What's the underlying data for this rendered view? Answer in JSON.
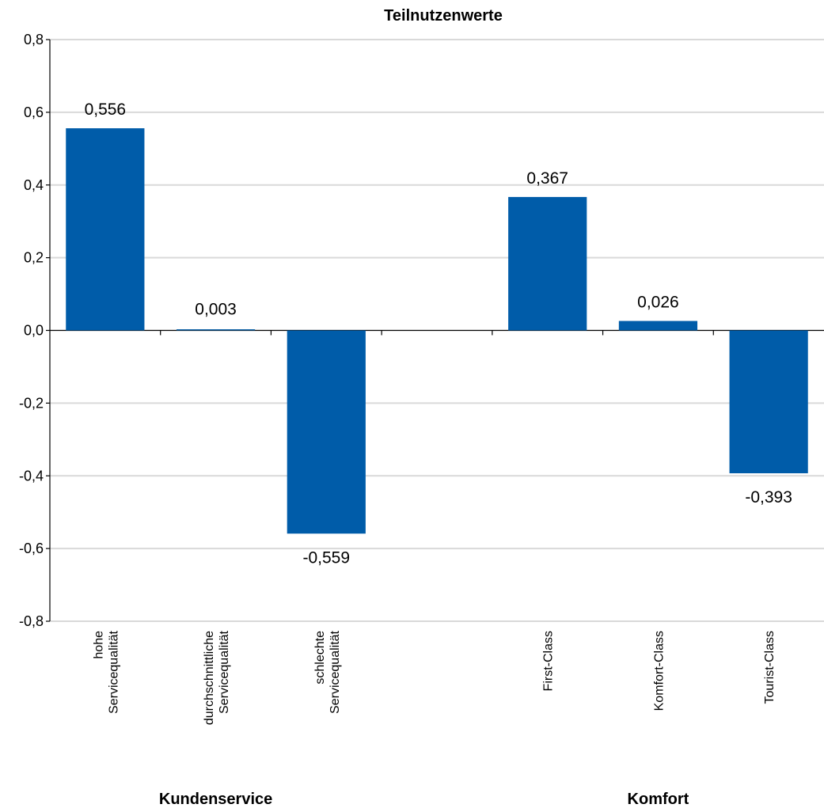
{
  "chart_data": {
    "type": "bar",
    "title": "Teilnutzenwerte",
    "ylim": [
      -0.8,
      0.8
    ],
    "yticks": [
      "-0,8",
      "-0,6",
      "-0,4",
      "-0,2",
      "0,0",
      "0,2",
      "0,4",
      "0,6",
      "0,8"
    ],
    "ytick_values": [
      -0.8,
      -0.6,
      -0.4,
      -0.2,
      0.0,
      0.2,
      0.4,
      0.6,
      0.8
    ],
    "grid": true,
    "bar_color": "#005ca9",
    "categories": [
      [
        "hohe",
        "Servicequalität"
      ],
      [
        "durchschnittliche",
        "Servicequalität"
      ],
      [
        "schlechte",
        "Servicequalität"
      ],
      [],
      [
        "First-Class"
      ],
      [
        "Komfort-Class"
      ],
      [
        "Tourist-Class"
      ]
    ],
    "values": [
      0.556,
      0.003,
      -0.559,
      null,
      0.367,
      0.026,
      -0.393
    ],
    "value_labels": [
      "0,556",
      "0,003",
      "-0,559",
      "",
      "0,367",
      "0,026",
      "-0,393"
    ],
    "groups": [
      {
        "label": "Kundenservice",
        "span": [
          0,
          2
        ]
      },
      {
        "label": "Komfort",
        "span": [
          4,
          6
        ]
      }
    ]
  }
}
